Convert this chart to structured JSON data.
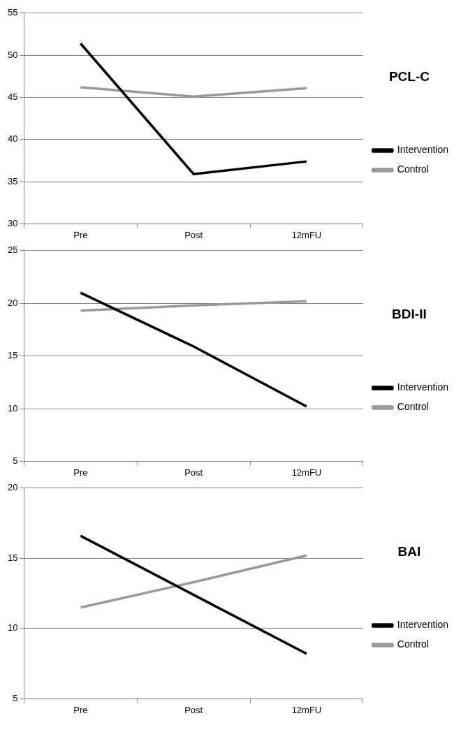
{
  "chart_data": [
    {
      "type": "line",
      "legend_title": "PCL-C",
      "categories": [
        "Pre",
        "Post",
        "12mFU"
      ],
      "ylim": [
        30,
        55
      ],
      "yticks": [
        30,
        35,
        40,
        45,
        50,
        55
      ],
      "grid": "y",
      "legend": "right",
      "marker": "none",
      "series": [
        {
          "name": "Intervention",
          "color": "#000000",
          "values": [
            51.4,
            35.9,
            37.4
          ]
        },
        {
          "name": "Control",
          "color": "#999999",
          "values": [
            46.2,
            45.1,
            46.1
          ]
        }
      ]
    },
    {
      "type": "line",
      "legend_title": "BDI-II",
      "categories": [
        "Pre",
        "Post",
        "12mFU"
      ],
      "ylim": [
        5,
        25
      ],
      "yticks": [
        5,
        10,
        15,
        20,
        25
      ],
      "grid": "y",
      "legend": "right",
      "marker": "none",
      "series": [
        {
          "name": "Intervention",
          "color": "#000000",
          "values": [
            21.0,
            15.9,
            10.2
          ]
        },
        {
          "name": "Control",
          "color": "#999999",
          "values": [
            19.3,
            19.8,
            20.2
          ]
        }
      ]
    },
    {
      "type": "line",
      "legend_title": "BAI",
      "categories": [
        "Pre",
        "Post",
        "12mFU"
      ],
      "ylim": [
        5,
        20
      ],
      "yticks": [
        5,
        10,
        15,
        20
      ],
      "grid": "y",
      "legend": "right",
      "marker": "none",
      "series": [
        {
          "name": "Intervention",
          "color": "#000000",
          "values": [
            16.6,
            12.4,
            8.2
          ]
        },
        {
          "name": "Control",
          "color": "#999999",
          "values": [
            11.5,
            13.3,
            15.2
          ]
        }
      ]
    }
  ]
}
